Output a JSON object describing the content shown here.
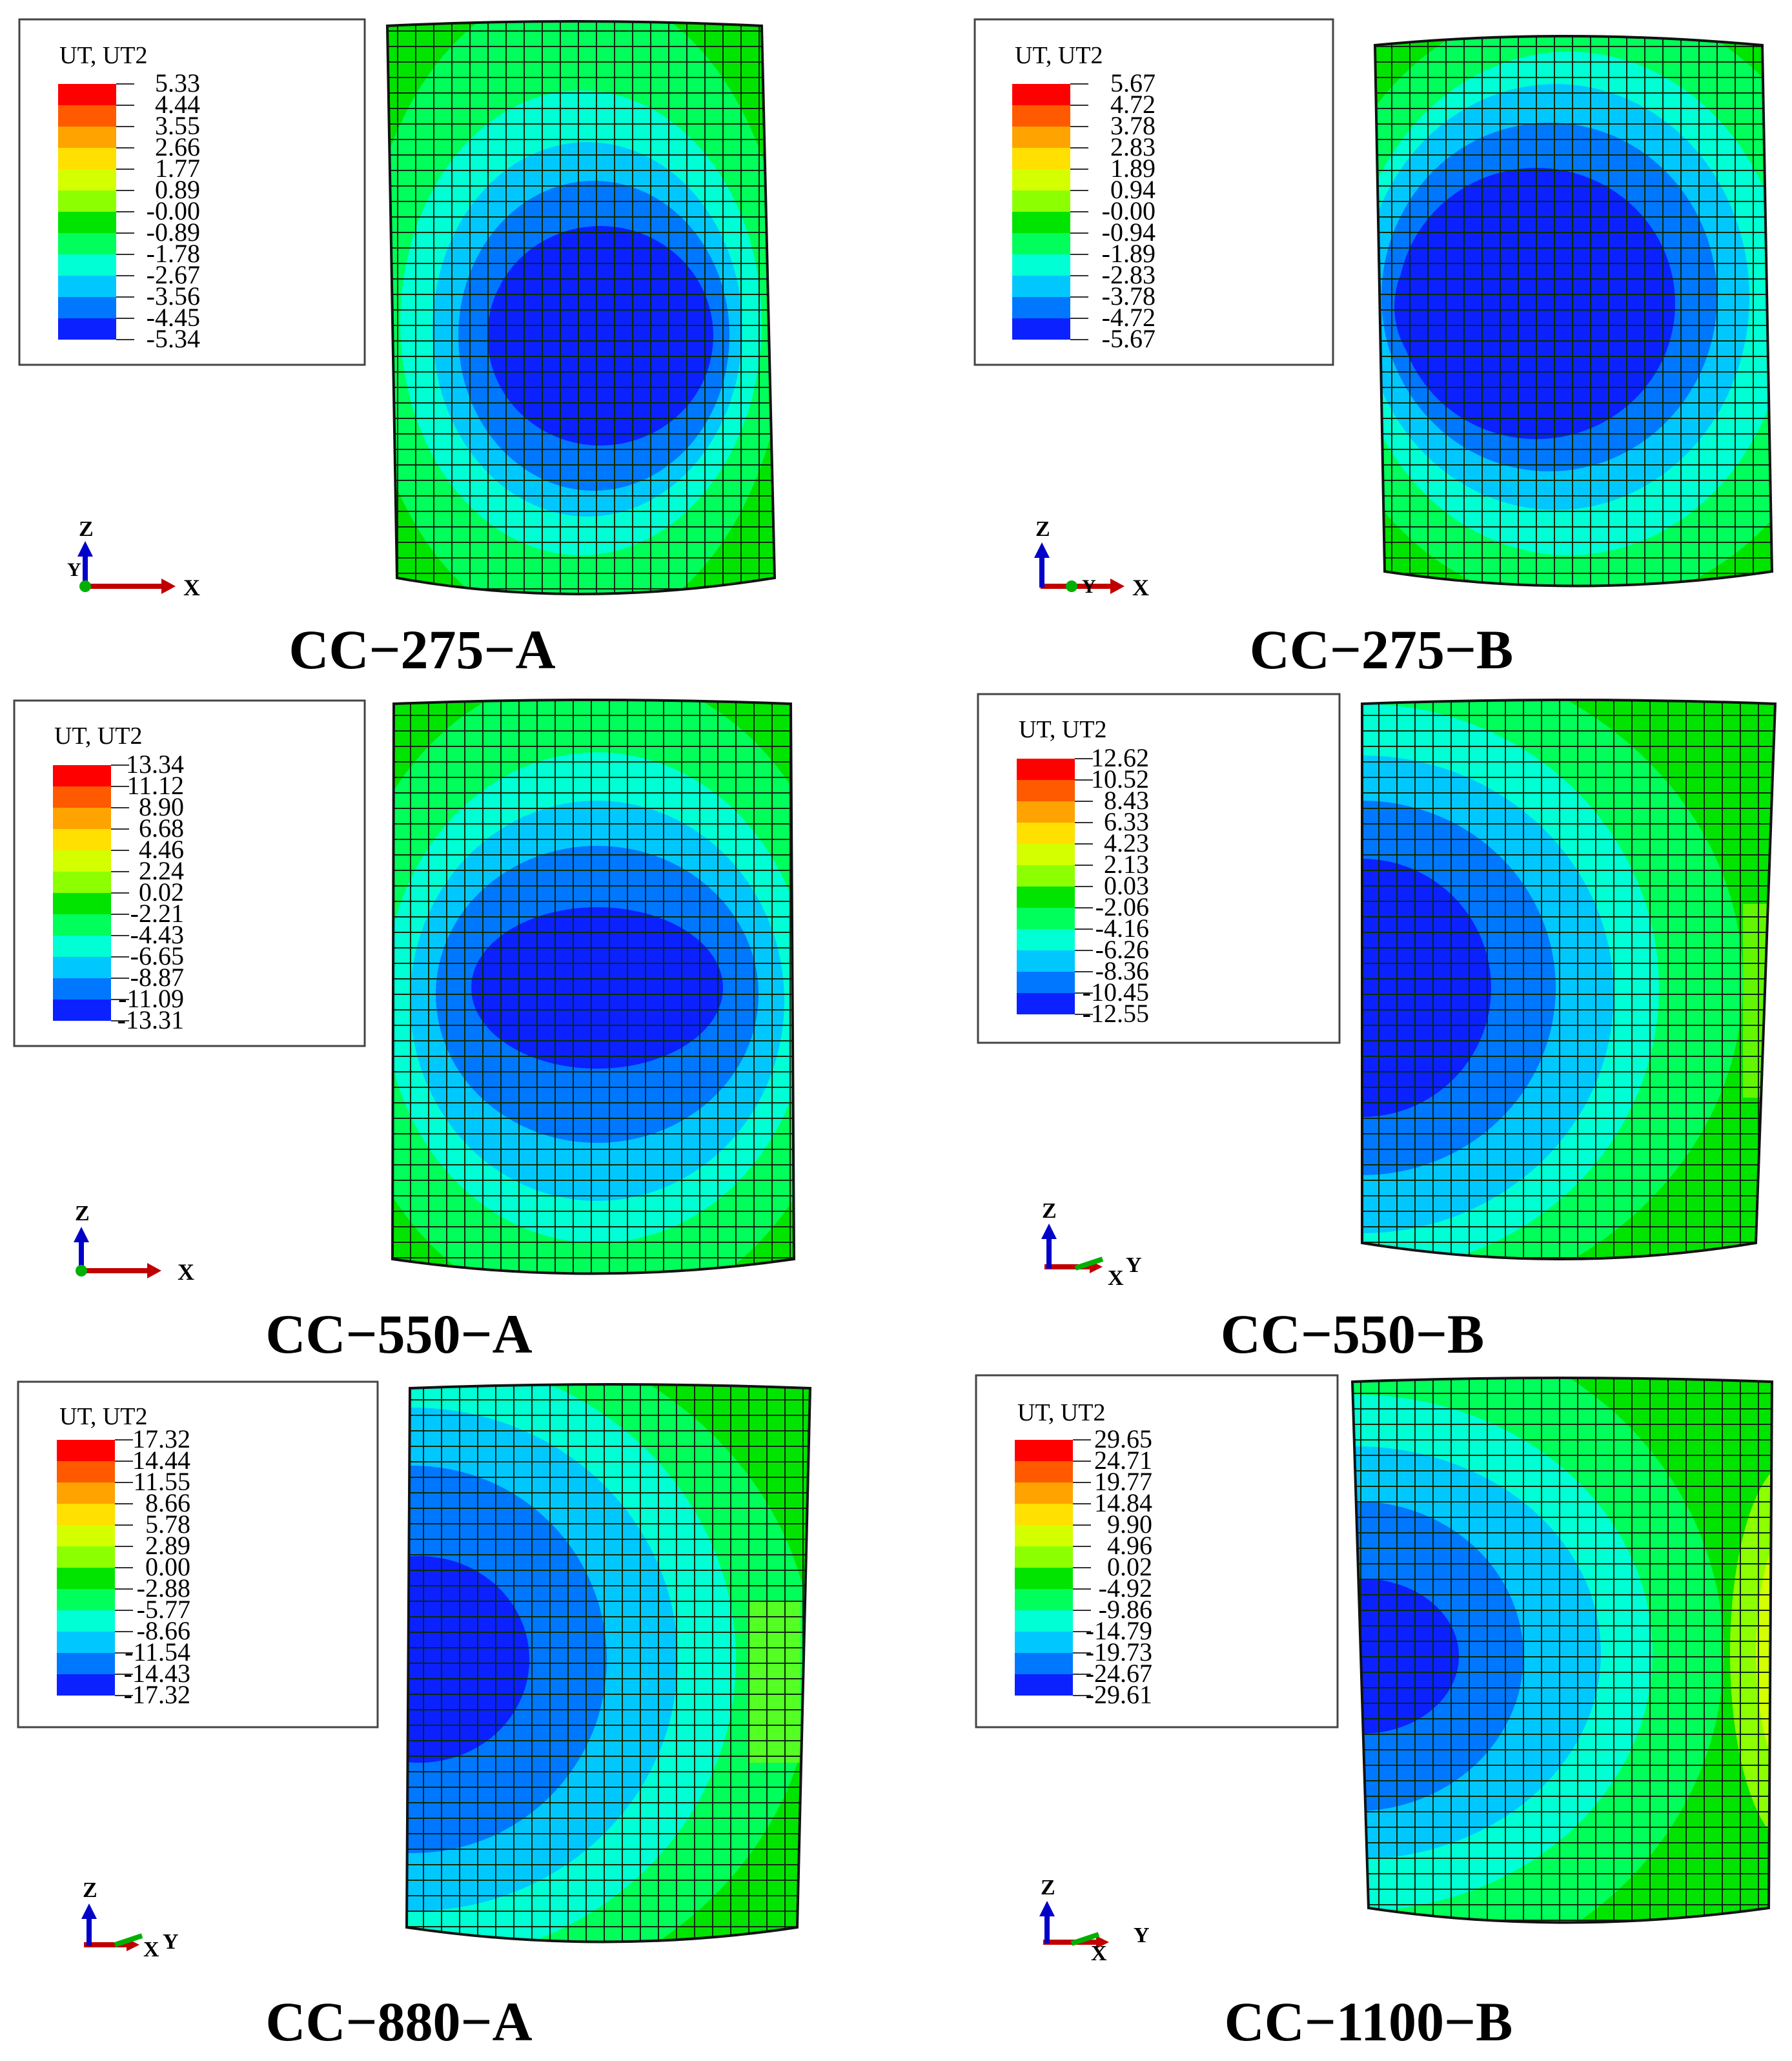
{
  "colors": [
    "#ff0000",
    "#ff5a00",
    "#ffa300",
    "#ffe000",
    "#d4ff00",
    "#8cff00",
    "#00e400",
    "#00ff5a",
    "#00ffd4",
    "#00c8ff",
    "#0077ff",
    "#0b21ff"
  ],
  "panels": [
    {
      "caption": "CC−275−A",
      "legend_title": "UT, UT2",
      "legend_values": [
        "5.33",
        "4.44",
        "3.55",
        "2.66",
        "1.77",
        "0.89",
        "-0.00",
        "-0.89",
        "-1.78",
        "-2.67",
        "-3.56",
        "-4.45",
        "-5.34"
      ],
      "triad": [
        "Z",
        "Y",
        "X"
      ]
    },
    {
      "caption": "CC−275−B",
      "legend_title": "UT, UT2",
      "legend_values": [
        "5.67",
        "4.72",
        "3.78",
        "2.83",
        "1.89",
        "0.94",
        "-0.00",
        "-0.94",
        "-1.89",
        "-2.83",
        "-3.78",
        "-4.72",
        "-5.67"
      ],
      "triad": [
        "Z",
        "Y",
        "X"
      ]
    },
    {
      "caption": "CC−550−A",
      "legend_title": "UT, UT2",
      "legend_values": [
        "13.34",
        "11.12",
        "8.90",
        "6.68",
        "4.46",
        "2.24",
        "0.02",
        "-2.21",
        "-4.43",
        "-6.65",
        "-8.87",
        "-11.09",
        "-13.31"
      ],
      "triad": [
        "Z",
        "",
        "X"
      ]
    },
    {
      "caption": "CC−550−B",
      "legend_title": "UT, UT2",
      "legend_values": [
        "12.62",
        "10.52",
        "8.43",
        "6.33",
        "4.23",
        "2.13",
        "0.03",
        "-2.06",
        "-4.16",
        "-6.26",
        "-8.36",
        "-10.45",
        "-12.55"
      ],
      "triad": [
        "Z",
        "Y",
        "X"
      ]
    },
    {
      "caption": "CC−880−A",
      "legend_title": "UT, UT2",
      "legend_values": [
        "17.32",
        "14.44",
        "11.55",
        "8.66",
        "5.78",
        "2.89",
        "0.00",
        "-2.88",
        "-5.77",
        "-8.66",
        "-11.54",
        "-14.43",
        "-17.32"
      ],
      "triad": [
        "Z",
        "Y",
        "X"
      ]
    },
    {
      "caption": "CC−1100−B",
      "legend_title": "UT, UT2",
      "legend_values": [
        "29.65",
        "24.71",
        "19.77",
        "14.84",
        "9.90",
        "4.96",
        "0.02",
        "-4.92",
        "-9.86",
        "-14.79",
        "-19.73",
        "-24.67",
        "-29.61"
      ],
      "triad": [
        "Z",
        "Y",
        "X"
      ]
    }
  ]
}
